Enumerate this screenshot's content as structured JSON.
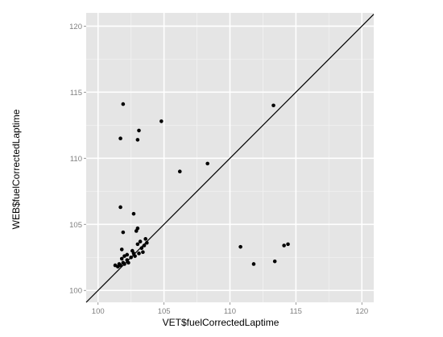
{
  "chart_data": {
    "type": "scatter",
    "title": "",
    "xlabel": "VET$fuelCorrectedLaptime",
    "ylabel": "WEB$fuelCorrectedLaptime",
    "xlim": [
      99.1,
      120.9
    ],
    "ylim": [
      99.1,
      121.0
    ],
    "x_ticks": [
      100,
      105,
      110,
      115,
      120
    ],
    "y_ticks": [
      100,
      105,
      110,
      115,
      120
    ],
    "x_tick_labels": [
      "100",
      "105",
      "110",
      "115",
      "120"
    ],
    "y_tick_labels": [
      "100",
      "105",
      "110",
      "115",
      "120"
    ],
    "grid": true,
    "reference_line": "y = x",
    "colors": {
      "panel_background": "#e5e5e5",
      "grid_major": "#ffffff",
      "grid_minor": "#f2f2f2",
      "points": "#000000",
      "reference_line": "#000000",
      "tick_labels": "#7f7f7f"
    },
    "series": [
      {
        "points": [
          [
            101.9,
            114.1
          ],
          [
            101.7,
            111.5
          ],
          [
            103.1,
            112.1
          ],
          [
            103.0,
            111.4
          ],
          [
            104.8,
            112.8
          ],
          [
            113.3,
            114.0
          ],
          [
            106.2,
            109.0
          ],
          [
            108.3,
            109.6
          ],
          [
            101.7,
            106.3
          ],
          [
            102.7,
            105.8
          ],
          [
            101.9,
            104.4
          ],
          [
            103.0,
            104.7
          ],
          [
            102.9,
            104.5
          ],
          [
            103.6,
            103.9
          ],
          [
            103.2,
            103.7
          ],
          [
            103.0,
            103.5
          ],
          [
            103.5,
            103.4
          ],
          [
            101.8,
            103.1
          ],
          [
            102.6,
            103.0
          ],
          [
            102.7,
            102.8
          ],
          [
            103.3,
            103.2
          ],
          [
            102.2,
            102.7
          ],
          [
            102.0,
            102.6
          ],
          [
            101.8,
            102.4
          ],
          [
            102.2,
            102.3
          ],
          [
            101.9,
            102.1
          ],
          [
            101.6,
            102.0
          ],
          [
            101.3,
            101.9
          ],
          [
            101.7,
            101.9
          ],
          [
            102.0,
            102.0
          ],
          [
            102.3,
            102.1
          ],
          [
            102.8,
            102.6
          ],
          [
            103.1,
            102.8
          ],
          [
            103.4,
            102.9
          ],
          [
            103.7,
            103.6
          ],
          [
            101.5,
            101.8
          ],
          [
            102.5,
            102.5
          ],
          [
            110.8,
            103.3
          ],
          [
            114.1,
            103.4
          ],
          [
            114.4,
            103.5
          ],
          [
            111.8,
            102.0
          ],
          [
            113.4,
            102.2
          ]
        ]
      }
    ]
  }
}
